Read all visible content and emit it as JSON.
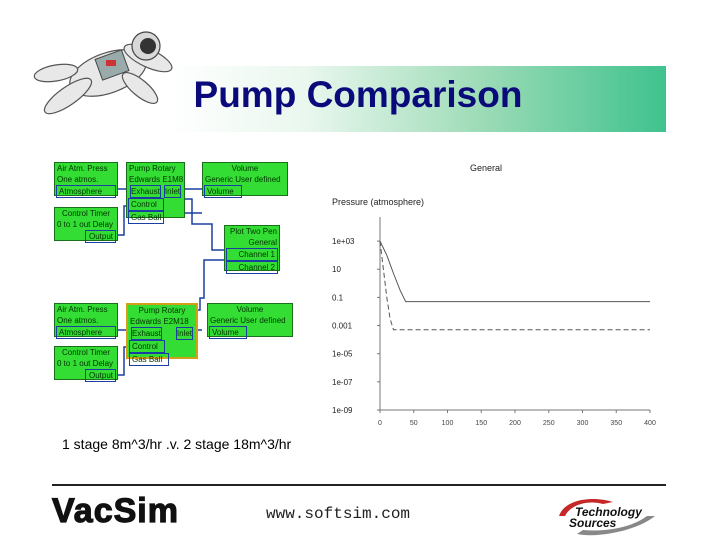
{
  "slide": {
    "title": "Pump Comparison",
    "caption": "1 stage 8m^3/hr .v. 2 stage 18m^3/hr",
    "website": "www.softsim.com",
    "logo_left": "VacSim",
    "logo_right_line1": "Technology",
    "logo_right_line2": "Sources"
  },
  "blocks": {
    "air1": [
      "Air Atm. Press",
      "One atmos.",
      "Atmosphere"
    ],
    "pump1": [
      "Pump Rotary",
      "Edwards E1M8",
      "Exhaust",
      "Inlet",
      "Control",
      "Gas Ball"
    ],
    "vol1": [
      "Volume",
      "Generic User defined",
      "Volume"
    ],
    "ctrl1": [
      "Control Timer",
      "0 to 1 out Delay",
      "Output"
    ],
    "plot": [
      "Plot Two Pen",
      "General",
      "Channel 1",
      "Channel 2"
    ],
    "air2": [
      "Air Atm. Press",
      "One atmos.",
      "Atmosphere"
    ],
    "pump2": [
      "Pump Rotary",
      "Edwards E2M18",
      "Exhaust",
      "Inlet",
      "Control",
      "Gas Ball"
    ],
    "vol2": [
      "Volume",
      "Generic User defined",
      "Volume"
    ],
    "ctrl2": [
      "Control Timer",
      "0 to 1 out Delay",
      "Output"
    ]
  },
  "chart_data": {
    "type": "line",
    "title": "General",
    "ylabel": "Pressure (atmosphere)",
    "y_scale": "log",
    "ylim": [
      1e-09,
      10000.0
    ],
    "xlim": [
      0,
      400
    ],
    "y_ticks": [
      "1e+03",
      "10",
      "0.1",
      "0.001",
      "1e-05",
      "1e-07",
      "1e-09"
    ],
    "x_ticks": [
      "0",
      "50",
      "100",
      "150",
      "200",
      "250",
      "300",
      "350",
      "400"
    ],
    "series": [
      {
        "style": "solid",
        "x": [
          0,
          10,
          20,
          30,
          38,
          45,
          400
        ],
        "y": [
          1000,
          100,
          5,
          0.3,
          0.05,
          0.05,
          0.05
        ]
      },
      {
        "style": "dashed",
        "x": [
          0,
          5,
          10,
          15,
          20,
          25,
          400
        ],
        "y": [
          1000,
          10,
          0.1,
          0.003,
          0.0005,
          0.0005,
          0.0005
        ]
      }
    ]
  }
}
